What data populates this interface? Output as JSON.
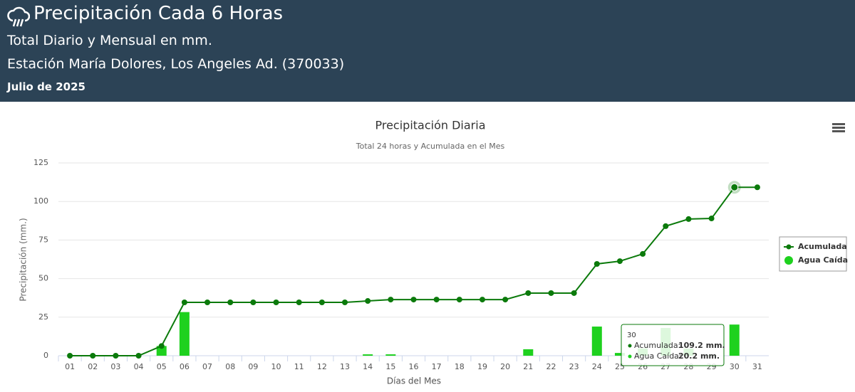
{
  "header": {
    "title": "Precipitación Cada 6 Horas",
    "subtitle": "Total Diario y Mensual en mm.",
    "station": "Estación María Dolores, Los Angeles Ad. (370033)",
    "period": "Julio de 2025"
  },
  "chart_data": {
    "type": "combo",
    "title": "Precipitación Diaria",
    "subtitle": "Total 24 horas y Acumulada en el Mes",
    "x_label": "Días del Mes",
    "y_label": "Precipitación (mm.)",
    "categories": [
      "01",
      "02",
      "03",
      "04",
      "05",
      "06",
      "07",
      "08",
      "09",
      "10",
      "11",
      "12",
      "13",
      "14",
      "15",
      "16",
      "17",
      "18",
      "19",
      "20",
      "21",
      "22",
      "23",
      "24",
      "25",
      "26",
      "27",
      "28",
      "29",
      "30",
      "31"
    ],
    "series": [
      {
        "name": "Acumulada",
        "type": "line",
        "color": "#0b7a0b",
        "values": [
          0,
          0,
          0,
          0,
          6.3,
          34.6,
          34.6,
          34.6,
          34.6,
          34.6,
          34.6,
          34.6,
          34.6,
          35.5,
          36.4,
          36.4,
          36.4,
          36.4,
          36.4,
          36.4,
          40.6,
          40.6,
          40.6,
          59.5,
          61.3,
          66,
          84,
          88.6,
          89,
          109.2,
          109.2
        ]
      },
      {
        "name": "Agua Caída",
        "type": "column",
        "color": "#1ed11e",
        "values": [
          0,
          0,
          0,
          0,
          6.3,
          28.3,
          0,
          0,
          0,
          0,
          0,
          0,
          0,
          0.9,
          0.9,
          0,
          0,
          0,
          0,
          0,
          4.2,
          0,
          0,
          18.9,
          1.8,
          4.7,
          18,
          4.6,
          0.4,
          20.2,
          0
        ]
      }
    ],
    "ylim": [
      0,
      125
    ],
    "yticks": [
      0,
      25,
      50,
      75,
      100,
      125
    ],
    "grid": true,
    "legend": "right",
    "tooltip": {
      "title": "30",
      "rows": [
        {
          "label": "Acumulada:",
          "text": "109.2 mm."
        },
        {
          "label": "Agua Caída:",
          "text": "20.2 mm."
        }
      ]
    }
  }
}
